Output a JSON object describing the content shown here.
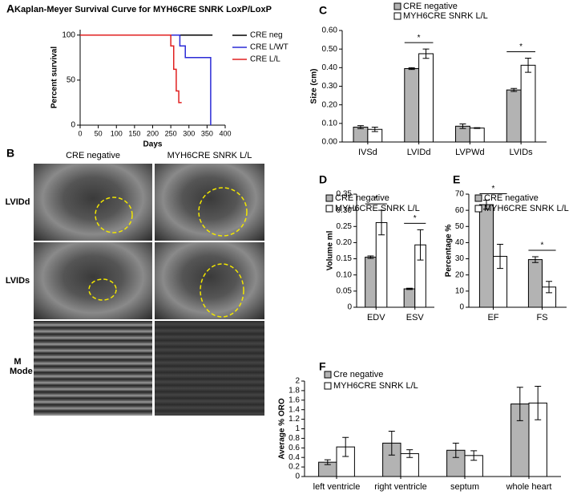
{
  "panel_labels": [
    "A",
    "B",
    "C",
    "D",
    "E",
    "F"
  ],
  "echo": {
    "columns": [
      "CRE negative",
      "MYH6CRE SNRK L/L"
    ],
    "rows": [
      "LVIDd",
      "LVIDs",
      "M Mode"
    ]
  },
  "chart_data": [
    {
      "type": "line",
      "title": "Kaplan-Meyer Survival Curve for MYH6CRE SNRK LoxP/LoxP",
      "xlabel": "Days",
      "ylabel": "Percent survival",
      "xlim": [
        0,
        400
      ],
      "xticks": [
        0,
        50,
        100,
        150,
        200,
        250,
        300,
        350,
        400
      ],
      "ylim": [
        0,
        106
      ],
      "yticks": [
        0,
        50,
        100
      ],
      "series": [
        {
          "name": "CRE neg",
          "color": "#000000",
          "x": [
            0,
            365
          ],
          "values": [
            100,
            100
          ]
        },
        {
          "name": "CRE L/WT",
          "color": "#2b2bd6",
          "x": [
            0,
            275,
            275,
            290,
            290,
            360,
            360
          ],
          "values": [
            100,
            100,
            88,
            88,
            75,
            75,
            0
          ]
        },
        {
          "name": "CRE L/L",
          "color": "#e02020",
          "x": [
            0,
            250,
            250,
            258,
            258,
            265,
            265,
            272,
            272,
            280
          ],
          "values": [
            100,
            100,
            88,
            88,
            62,
            62,
            38,
            38,
            25,
            25
          ]
        }
      ]
    },
    {
      "type": "bar",
      "ylabel": "Size (cm)",
      "categories": [
        "IVSd",
        "LVIDd",
        "LVPWd",
        "LVIDs"
      ],
      "ylim": [
        0,
        0.6
      ],
      "yticks": [
        {
          "value": 0,
          "label": "0.00"
        },
        {
          "value": 0.1,
          "label": "0.10"
        },
        {
          "value": 0.2,
          "label": "0.20"
        },
        {
          "value": 0.3,
          "label": "0.30"
        },
        {
          "value": 0.4,
          "label": "0.40"
        },
        {
          "value": 0.5,
          "label": "0.50"
        },
        {
          "value": 0.6,
          "label": "0.60"
        }
      ],
      "series": [
        {
          "name": "CRE negative",
          "color": "#b3b3b3",
          "values": [
            0.08,
            0.395,
            0.085,
            0.28
          ],
          "errors": [
            0.008,
            0.005,
            0.012,
            0.008
          ]
        },
        {
          "name": "MYH6CRE SNRK L/L",
          "color": "#ffffff",
          "values": [
            0.068,
            0.475,
            0.075,
            0.413
          ],
          "errors": [
            0.012,
            0.025,
            0.002,
            0.038
          ]
        }
      ],
      "significance": [
        {
          "text": "*",
          "category": "LVIDd"
        },
        {
          "text": "*",
          "category": "LVIDs"
        }
      ]
    },
    {
      "type": "bar",
      "ylabel": "Volume ml",
      "categories": [
        "EDV",
        "ESV"
      ],
      "ylim": [
        0,
        0.35
      ],
      "yticks": [
        0,
        0.05,
        {
          "value": 0.1,
          "label": "0.10"
        },
        0.15,
        {
          "value": 0.2,
          "label": "0.20"
        },
        0.25,
        {
          "value": 0.3,
          "label": "0.30"
        },
        0.35
      ],
      "series": [
        {
          "name": "CRE negative",
          "color": "#b3b3b3",
          "values": [
            0.155,
            0.057
          ],
          "errors": [
            0.004,
            0.002
          ]
        },
        {
          "name": "MYH6CRE SNRK L/L",
          "color": "#ffffff",
          "values": [
            0.262,
            0.193
          ],
          "errors": [
            0.038,
            0.047
          ]
        }
      ],
      "significance": [
        {
          "text": "*",
          "category": "EDV"
        },
        {
          "text": "*",
          "category": "ESV"
        }
      ]
    },
    {
      "type": "bar",
      "ylabel": "Percentage %",
      "categories": [
        "EF",
        "FS"
      ],
      "ylim": [
        0,
        70
      ],
      "yticks": [
        0,
        10,
        20,
        30,
        40,
        50,
        60,
        70
      ],
      "series": [
        {
          "name": "CRE negative",
          "color": "#b3b3b3",
          "values": [
            63.5,
            29.5
          ],
          "errors": [
            2.8,
            1.8
          ]
        },
        {
          "name": "MYH6CRE SNRK L/L",
          "color": "#ffffff",
          "values": [
            31.5,
            12.5
          ],
          "errors": [
            7.5,
            3.5
          ]
        }
      ],
      "significance": [
        {
          "text": "*",
          "category": "EF"
        },
        {
          "text": "*",
          "category": "FS"
        }
      ]
    },
    {
      "type": "bar",
      "ylabel": "Average % ORO",
      "categories": [
        "left ventricle",
        "right ventricle",
        "septum",
        "whole heart"
      ],
      "ylim": [
        0,
        2
      ],
      "yticks": [
        0,
        0.2,
        0.4,
        0.6,
        0.8,
        1,
        1.2,
        1.4,
        1.6,
        1.8,
        2
      ],
      "series": [
        {
          "name": "Cre negative",
          "color": "#b3b3b3",
          "values": [
            0.3,
            0.7,
            0.55,
            1.52
          ],
          "errors": [
            0.05,
            0.25,
            0.15,
            0.35
          ]
        },
        {
          "name": "MYH6CRE SNRK L/L",
          "color": "#ffffff",
          "values": [
            0.62,
            0.48,
            0.44,
            1.54
          ],
          "errors": [
            0.2,
            0.08,
            0.1,
            0.35
          ]
        }
      ]
    }
  ]
}
